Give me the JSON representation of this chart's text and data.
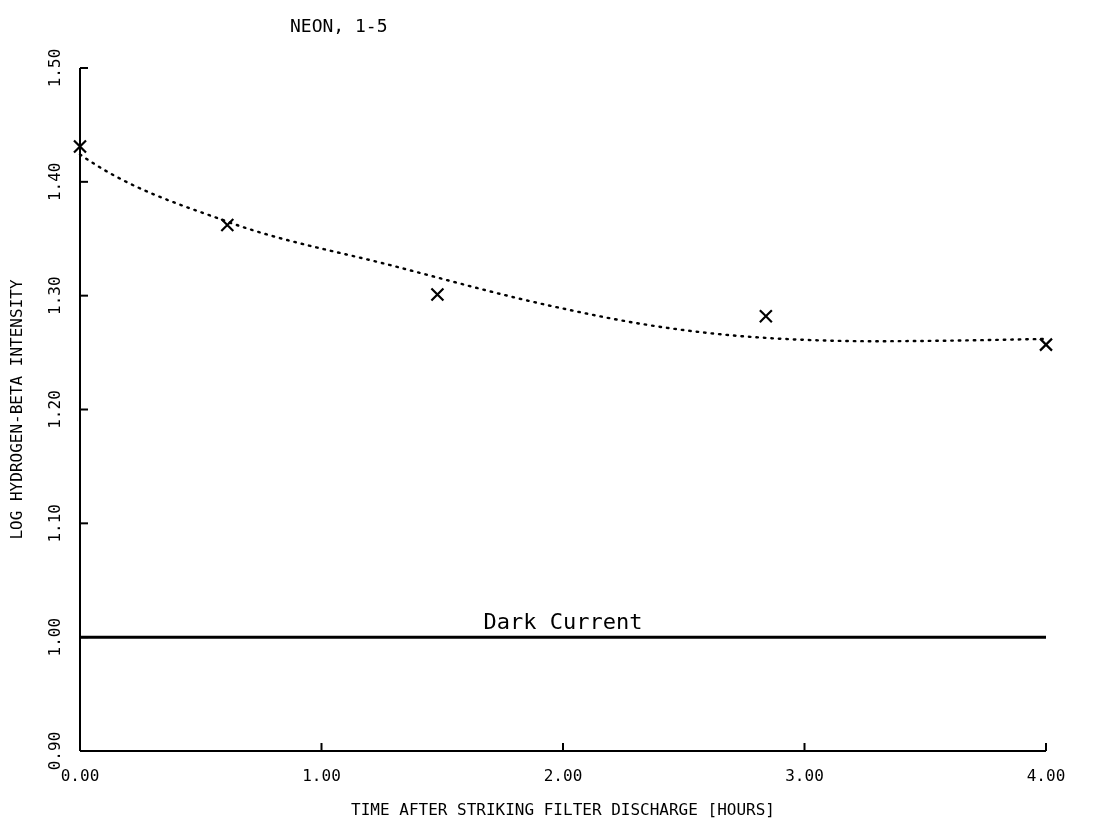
{
  "chart_data": {
    "type": "scatter",
    "title": "NEON, 1-5",
    "xlabel": "TIME AFTER STRIKING FILTER DISCHARGE [HOURS]",
    "ylabel": "LOG HYDROGEN-BETA INTENSITY",
    "series": [
      {
        "color": "#000000",
        "marker": "cross",
        "x": [
          0,
          0.61,
          1.48,
          2.84,
          4.0
        ],
        "values": [
          1.431,
          1.362,
          1.301,
          1.282,
          1.257
        ]
      },
      {
        "type": "line",
        "color": "#000000",
        "line_style": "dotted",
        "marker": "none",
        "x": [
          0,
          0.05,
          0.61,
          1.3,
          1.95,
          2.33,
          2.83,
          3.28,
          4.0
        ],
        "values": [
          1.424,
          1.417,
          1.365,
          1.326,
          1.291,
          1.275,
          1.263,
          1.26,
          1.262
        ]
      }
    ],
    "ref_lines": [
      {
        "axis": "y",
        "value": 1.0,
        "label": "Dark Current",
        "color": "#000000",
        "line_style": "solid"
      }
    ],
    "xlim": [
      0,
      4
    ],
    "xticks": [
      {
        "value": 0,
        "label": "0.00"
      },
      {
        "value": 1,
        "label": "1.00"
      },
      {
        "value": 2,
        "label": "2.00"
      },
      {
        "value": 3,
        "label": "3.00"
      },
      {
        "value": 4,
        "label": "4.00"
      }
    ],
    "ylim": [
      0.9,
      1.5
    ],
    "yticks": [
      {
        "value": 0.9,
        "label": "0.90"
      },
      {
        "value": 1.0,
        "label": "1.00"
      },
      {
        "value": 1.1,
        "label": "1.10"
      },
      {
        "value": 1.2,
        "label": "1.20"
      },
      {
        "value": 1.3,
        "label": "1.30"
      },
      {
        "value": 1.4,
        "label": "1.40"
      },
      {
        "value": 1.5,
        "label": "1.50"
      }
    ],
    "grid": false
  }
}
